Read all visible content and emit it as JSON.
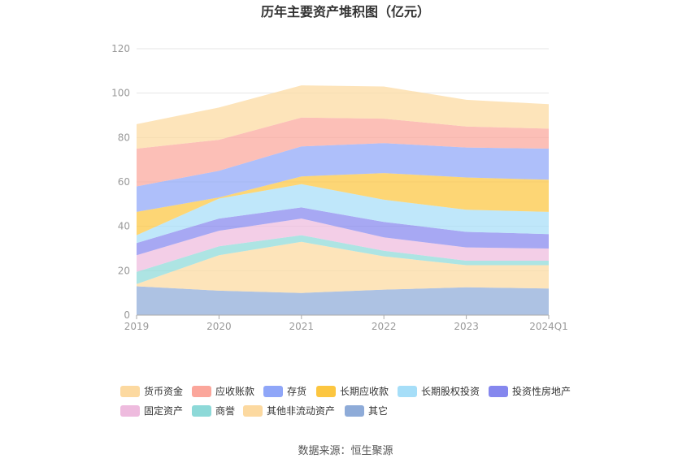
{
  "chart_data": {
    "type": "area",
    "stacked": true,
    "title": "历年主要资产堆积图（亿元）",
    "categories": [
      "2019",
      "2020",
      "2021",
      "2022",
      "2023",
      "2024Q1"
    ],
    "ylim": [
      0,
      120
    ],
    "yticks": [
      0,
      20,
      40,
      60,
      80,
      100,
      120
    ],
    "grid": true,
    "legend_position": "bottom",
    "series": [
      {
        "name": "其它",
        "color": "#8eabd8",
        "values": [
          13,
          11,
          10,
          11.5,
          12.5,
          12
        ]
      },
      {
        "name": "其他非流动资产",
        "color": "#fcd9a0",
        "values": [
          1,
          16,
          23,
          15,
          10,
          10.5
        ]
      },
      {
        "name": "商誉",
        "color": "#8dd9d8",
        "values": [
          5.5,
          4,
          3,
          2.5,
          2,
          2
        ]
      },
      {
        "name": "固定资产",
        "color": "#eebbde",
        "values": [
          7.5,
          7,
          7.5,
          6,
          6,
          5.5
        ]
      },
      {
        "name": "投资性房地产",
        "color": "#8587ee",
        "values": [
          5.5,
          5.5,
          5,
          7,
          7,
          6.5
        ]
      },
      {
        "name": "长期股权投资",
        "color": "#a6def8",
        "values": [
          3.5,
          9,
          10.5,
          10,
          10,
          10
        ]
      },
      {
        "name": "长期应收款",
        "color": "#fcc640",
        "values": [
          10.5,
          0.5,
          3.5,
          12,
          14.5,
          14.5
        ]
      },
      {
        "name": "存货",
        "color": "#8fa6f8",
        "values": [
          11.5,
          12,
          13.5,
          13.5,
          13.5,
          14
        ]
      },
      {
        "name": "应收账款",
        "color": "#fba69b",
        "values": [
          17,
          14,
          13,
          11,
          9.5,
          9
        ]
      },
      {
        "name": "货币资金",
        "color": "#fcd9a0",
        "values": [
          11,
          14.5,
          14.5,
          14.5,
          12,
          11
        ]
      }
    ],
    "legend_order": [
      "货币资金",
      "应收账款",
      "存货",
      "长期应收款",
      "长期股权投资",
      "投资性房地产",
      "固定资产",
      "商誉",
      "其他非流动资产",
      "其它"
    ]
  },
  "source_text": "数据来源：恒生聚源"
}
